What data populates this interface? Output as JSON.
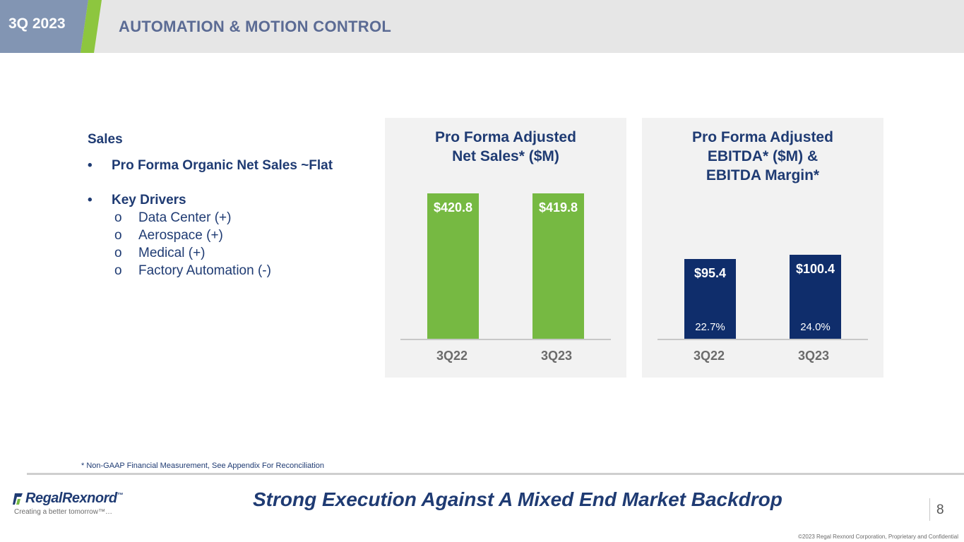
{
  "header": {
    "period": "3Q 2023",
    "title": "AUTOMATION & MOTION CONTROL"
  },
  "sales": {
    "heading": "Sales",
    "bullets": [
      {
        "symbol": "•",
        "text": "Pro Forma Organic Net Sales ~Flat"
      },
      {
        "symbol": "•",
        "text": "Key Drivers"
      }
    ],
    "sub_bullets": [
      {
        "symbol": "o",
        "text": "Data Center (+)"
      },
      {
        "symbol": "o",
        "text": "Aerospace (+)"
      },
      {
        "symbol": "o",
        "text": "Medical (+)"
      },
      {
        "symbol": "o",
        "text": "Factory Automation (-)"
      }
    ]
  },
  "chart_data": [
    {
      "type": "bar",
      "title": "Pro Forma Adjusted Net Sales* ($M)",
      "title_lines": [
        "Pro Forma Adjusted",
        "Net Sales* ($M)"
      ],
      "categories": [
        "3Q22",
        "3Q23"
      ],
      "values": [
        420.8,
        419.8
      ],
      "value_labels": [
        "$420.8",
        "$419.8"
      ],
      "color": "#76b942"
    },
    {
      "type": "bar",
      "title": "Pro Forma Adjusted EBITDA* ($M) & EBITDA Margin*",
      "title_lines": [
        "Pro Forma Adjusted",
        "EBITDA* ($M) &",
        "EBITDA Margin*"
      ],
      "categories": [
        "3Q22",
        "3Q23"
      ],
      "values": [
        95.4,
        100.4
      ],
      "value_labels": [
        "$95.4",
        "$100.4"
      ],
      "margins": [
        "22.7%",
        "24.0%"
      ],
      "color": "#0f2d6b"
    }
  ],
  "footer": {
    "footnote": "* Non-GAAP Financial Measurement, See Appendix For Reconciliation",
    "logo_text": "RegalRexnord",
    "logo_tm": "™",
    "tagline": "Creating a better tomorrow™…",
    "headline": "Strong Execution Against A Mixed End Market Backdrop",
    "page_number": "8",
    "copyright": "©2023 Regal Rexnord Corporation, Proprietary and Confidential"
  },
  "colors": {
    "navy": "#1f3b73",
    "green": "#76b942",
    "slate": "#8295b3"
  }
}
